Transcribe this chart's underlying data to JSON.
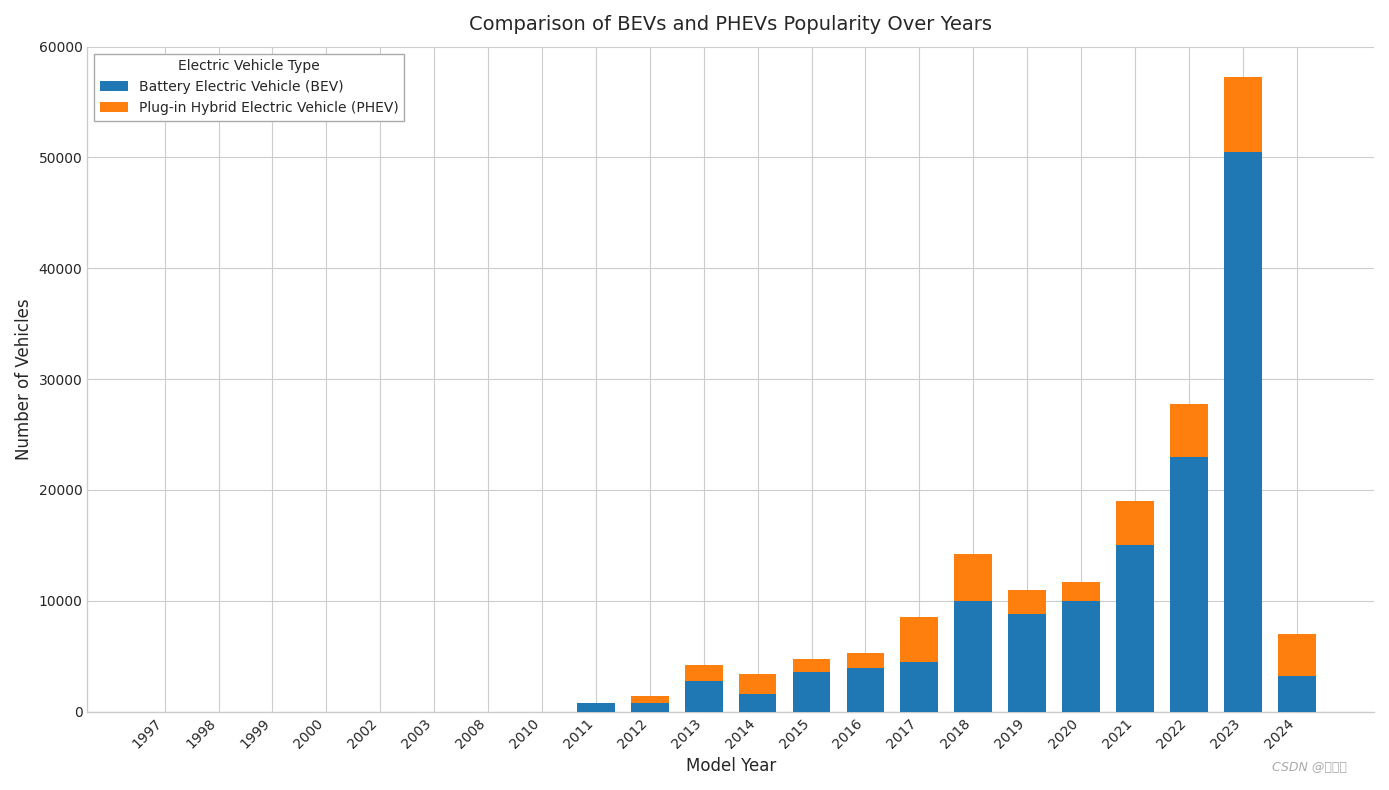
{
  "title": "Comparison of BEVs and PHEVs Popularity Over Years",
  "xlabel": "Model Year",
  "ylabel": "Number of Vehicles",
  "years": [
    1997,
    1998,
    1999,
    2000,
    2002,
    2003,
    2008,
    2010,
    2011,
    2012,
    2013,
    2014,
    2015,
    2016,
    2017,
    2018,
    2019,
    2020,
    2021,
    2022,
    2023,
    2024
  ],
  "bev": [
    0,
    0,
    0,
    0,
    0,
    0,
    0,
    0,
    750,
    750,
    2800,
    1600,
    3600,
    3900,
    4500,
    10000,
    8800,
    10000,
    15000,
    23000,
    50500,
    3200
  ],
  "phev": [
    0,
    0,
    0,
    0,
    0,
    0,
    0,
    0,
    0,
    700,
    1400,
    1800,
    1100,
    1400,
    4000,
    4200,
    2200,
    1700,
    4000,
    4800,
    6800,
    3800
  ],
  "bev_color": "#1f77b4",
  "phev_color": "#ff7f0e",
  "background_color": "#ffffff",
  "legend_title": "Electric Vehicle Type",
  "legend_bev": "Battery Electric Vehicle (BEV)",
  "legend_phev": "Plug-in Hybrid Electric Vehicle (PHEV)",
  "ylim": [
    0,
    60000
  ],
  "yticks": [
    0,
    10000,
    20000,
    30000,
    40000,
    50000,
    60000
  ],
  "title_fontsize": 14,
  "axis_label_fontsize": 12,
  "tick_fontsize": 10,
  "watermark": "CSDN @艾派森"
}
